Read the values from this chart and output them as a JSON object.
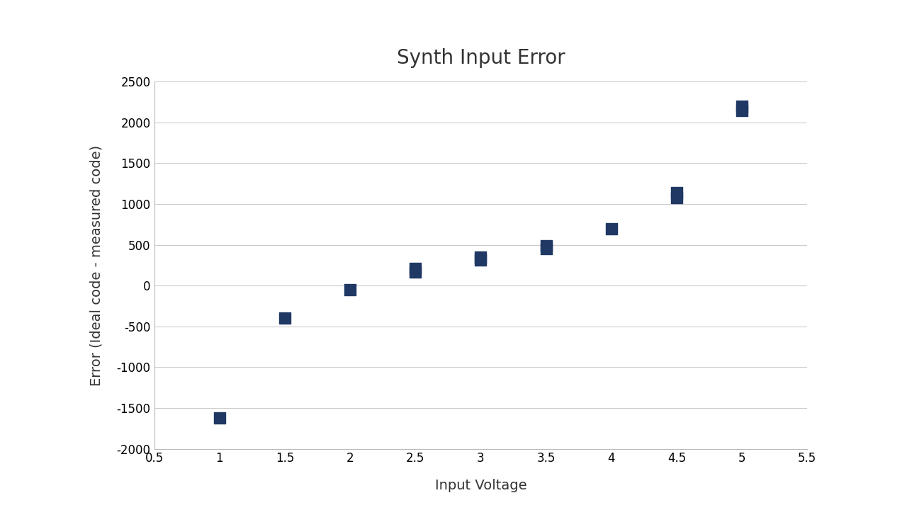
{
  "x": [
    1.0,
    1.5,
    2.0,
    2.5,
    2.5,
    3.0,
    3.0,
    3.5,
    3.5,
    4.0,
    4.5,
    4.5,
    5.0,
    5.0
  ],
  "y": [
    -1620,
    -400,
    -50,
    170,
    210,
    310,
    350,
    450,
    490,
    700,
    1080,
    1140,
    2150,
    2200
  ],
  "marker_color": "#1F3864",
  "marker_size": 130,
  "title": "Synth Input Error",
  "xlabel": "Input Voltage",
  "ylabel": "Error (Ideal code - measured code)",
  "xlim": [
    0.5,
    5.5
  ],
  "ylim": [
    -2000,
    2500
  ],
  "yticks": [
    -2000,
    -1500,
    -1000,
    -500,
    0,
    500,
    1000,
    1500,
    2000,
    2500
  ],
  "xticks": [
    0.5,
    1.0,
    1.5,
    2.0,
    2.5,
    3.0,
    3.5,
    4.0,
    4.5,
    5.0,
    5.5
  ],
  "xticklabels": [
    "0.5",
    "1",
    "1.5",
    "2",
    "2.5",
    "3",
    "3.5",
    "4",
    "4.5",
    "5",
    "5.5"
  ],
  "background_color": "#ffffff",
  "grid_color": "#cccccc",
  "title_fontsize": 20,
  "label_fontsize": 14,
  "tick_fontsize": 12
}
